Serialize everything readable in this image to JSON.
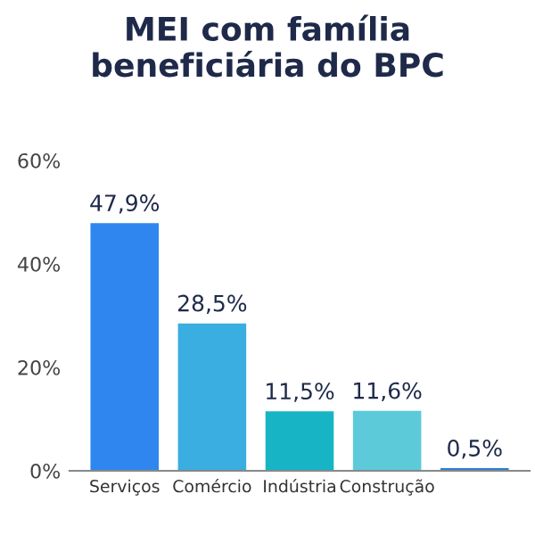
{
  "chart_data": {
    "type": "bar",
    "title": "MEI com família\nbeneficiária do BPC",
    "categories": [
      "Serviços",
      "Comércio",
      "Indústria",
      "Construção",
      null
    ],
    "values": [
      47.9,
      28.5,
      11.5,
      11.6,
      0.5
    ],
    "value_labels": [
      "47,9%",
      "28,5%",
      "11,5%",
      "11,6%",
      "0,5%"
    ],
    "colors": [
      "#2f86ee",
      "#3aaee0",
      "#17b4c6",
      "#5ccad8",
      "#2a7fd4"
    ],
    "ylim": [
      0,
      60
    ],
    "yticks": [
      {
        "value": 0,
        "label": "0%"
      },
      {
        "value": 20,
        "label": "20%"
      },
      {
        "value": 40,
        "label": "40%"
      },
      {
        "value": 60,
        "label": "60%"
      }
    ],
    "grid": false
  }
}
